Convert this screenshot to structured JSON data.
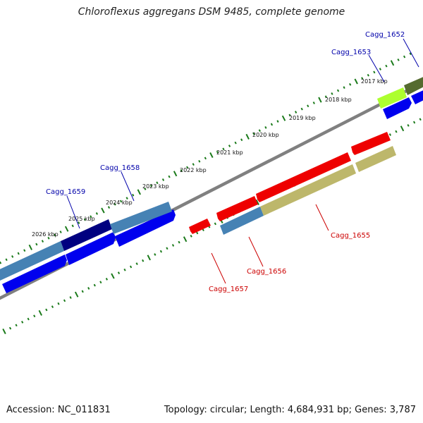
{
  "title": "Chloroflexus aggregans DSM 9485, complete genome",
  "footer": {
    "accession": "Accession: NC_011831",
    "summary": "Topology: circular; Length: 4,684,931 bp; Genes: 3,787"
  },
  "scale_labels": [
    "2017 kbp",
    "2018 kbp",
    "2019 kbp",
    "2020 kbp",
    "2021 kbp",
    "2022 kbp",
    "2023 kbp",
    "2024 kbp",
    "2025 kbp",
    "2026 kbp"
  ],
  "gene_labels": {
    "top": [
      "Cagg_1652",
      "Cagg_1653",
      "Cagg_1658",
      "Cagg_1659"
    ],
    "bottom": [
      "Cagg_1655",
      "Cagg_1656",
      "Cagg_1657"
    ]
  },
  "colors": {
    "backbone": "#808080",
    "tick": "#1a7a1a",
    "forward_arrow": "#0000ee",
    "reverse_arrow": "#ee0000",
    "steelblue": "#4682b4",
    "navy": "#000080",
    "khaki": "#bdb76b",
    "olive": "#556b2f",
    "lime": "#adff2f",
    "top_label": "#0000aa",
    "bottom_label": "#cc0000"
  }
}
